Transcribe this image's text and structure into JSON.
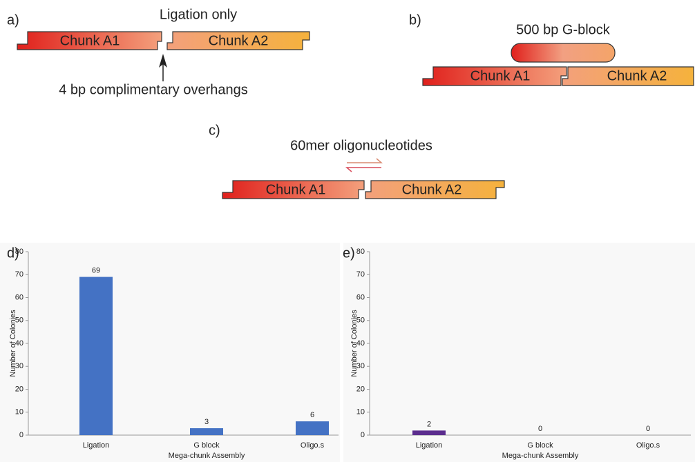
{
  "diagram": {
    "panel_a": {
      "label": "a)",
      "title": "Ligation only",
      "chunk_1": "Chunk A1",
      "chunk_2": "Chunk A2",
      "annotation": "4 bp complimentary overhangs"
    },
    "panel_b": {
      "label": "b)",
      "title": "500 bp G-block",
      "chunk_1": "Chunk A1",
      "chunk_2": "Chunk A2"
    },
    "panel_c": {
      "label": "c)",
      "title": "60mer oligonucleotides",
      "chunk_1": "Chunk A1",
      "chunk_2": "Chunk A2"
    }
  },
  "chart_data": [
    {
      "type": "bar",
      "annotation": "d)",
      "x_label": "Mega-chunk Assembly",
      "y_label": "Number of Colonies",
      "categories": [
        "Ligation",
        "G block",
        "Oligo.s"
      ],
      "values": [
        69,
        3,
        6
      ],
      "color": "#4472c4",
      "ylim": [
        0,
        80
      ],
      "yticks": [
        0,
        10,
        20,
        30,
        40,
        50,
        60,
        70,
        80
      ]
    },
    {
      "type": "bar",
      "annotation": "e)",
      "x_label": "Mega-chunk Assembly",
      "y_label": "Number of Colonies",
      "categories": [
        "Ligation",
        "G block",
        "Oligo.s"
      ],
      "values": [
        2,
        0,
        0
      ],
      "color": "#5b2d8e",
      "ylim": [
        0,
        80
      ],
      "yticks": [
        0,
        10,
        20,
        30,
        40,
        50,
        60,
        70,
        80
      ]
    }
  ]
}
